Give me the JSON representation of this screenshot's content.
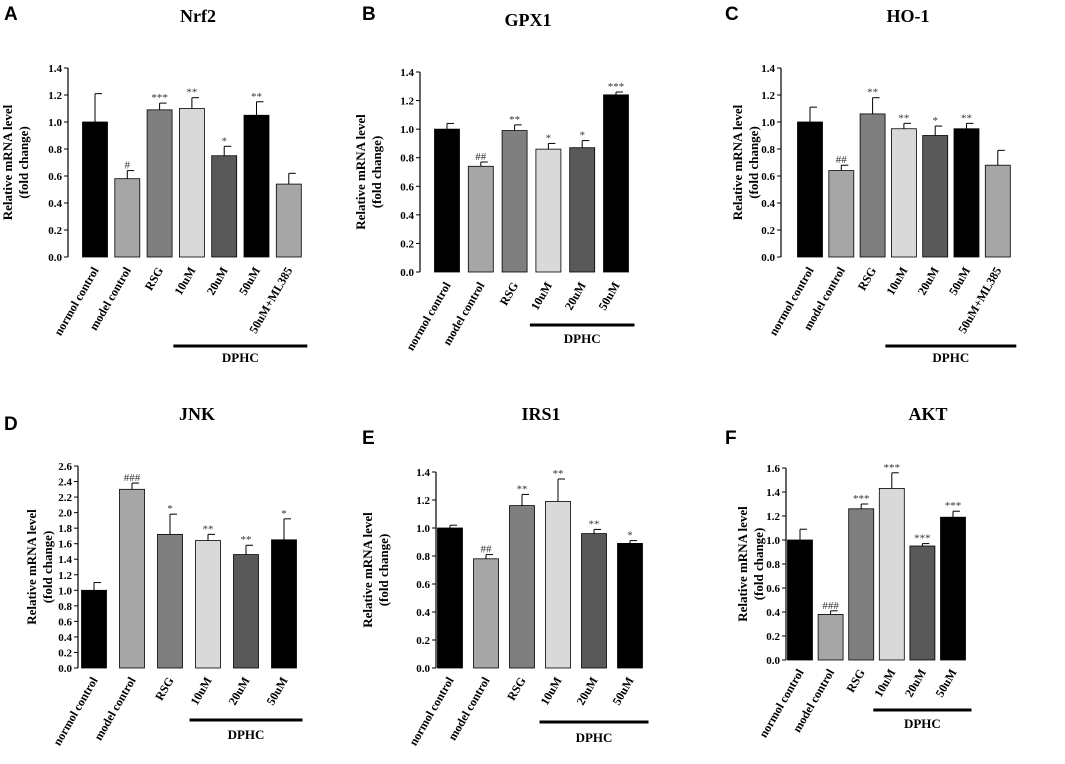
{
  "figure": {
    "colors": [
      "#000000",
      "#a6a6a6",
      "#7f7f7f",
      "#d9d9d9",
      "#595959",
      "#000000",
      "#a6a6a6"
    ],
    "group_label": "DPHC",
    "ylabel_line1": "Relative mRNA level",
    "ylabel_line2": "(fold change)"
  },
  "chart_data": [
    {
      "panel": "A",
      "type": "bar",
      "title": "Nrf2",
      "ylabel": "Relative mRNA level (fold change)",
      "categories": [
        "normol control",
        "model control",
        "RSG",
        "10uM",
        "20uM",
        "50uM",
        "50uM+ML385"
      ],
      "values": [
        1.0,
        0.58,
        1.09,
        1.1,
        0.75,
        1.05,
        0.54
      ],
      "errors": [
        0.21,
        0.06,
        0.05,
        0.08,
        0.07,
        0.1,
        0.08
      ],
      "significance": [
        "",
        "#",
        "***",
        "**",
        "*",
        "**",
        ""
      ],
      "ylim": [
        0,
        1.4
      ],
      "ytick_step": 0.2,
      "ytick_decimals": 1,
      "group": {
        "label": "DPHC",
        "from": 3,
        "to": 6
      }
    },
    {
      "panel": "B",
      "type": "bar",
      "title": "GPX1",
      "ylabel": "Relative mRNA level (fold change)",
      "categories": [
        "normol control",
        "model control",
        "RSG",
        "10uM",
        "20uM",
        "50uM"
      ],
      "values": [
        1.0,
        0.74,
        0.99,
        0.86,
        0.87,
        1.24
      ],
      "errors": [
        0.04,
        0.03,
        0.04,
        0.04,
        0.05,
        0.02
      ],
      "significance": [
        "",
        "##",
        "**",
        "*",
        "*",
        "***"
      ],
      "ylim": [
        0,
        1.4
      ],
      "ytick_step": 0.2,
      "ytick_decimals": 1,
      "group": {
        "label": "DPHC",
        "from": 3,
        "to": 5
      }
    },
    {
      "panel": "C",
      "type": "bar",
      "title": "HO-1",
      "ylabel": "Relative mRNA level (fold change)",
      "categories": [
        "normol control",
        "model control",
        "RSG",
        "10uM",
        "20uM",
        "50uM",
        "50uM+ML385"
      ],
      "values": [
        1.0,
        0.64,
        1.06,
        0.95,
        0.9,
        0.95,
        0.68
      ],
      "errors": [
        0.11,
        0.04,
        0.12,
        0.04,
        0.07,
        0.04,
        0.11
      ],
      "significance": [
        "",
        "##",
        "**",
        "**",
        "*",
        "**",
        ""
      ],
      "ylim": [
        0,
        1.4
      ],
      "ytick_step": 0.2,
      "ytick_decimals": 1,
      "group": {
        "label": "DPHC",
        "from": 3,
        "to": 6
      }
    },
    {
      "panel": "D",
      "type": "bar",
      "title": "JNK",
      "ylabel": "Relative mRNA level (fold change)",
      "categories": [
        "normol control",
        "model control",
        "RSG",
        "10uM",
        "20uM",
        "50uM"
      ],
      "values": [
        1.0,
        2.3,
        1.72,
        1.64,
        1.46,
        1.65
      ],
      "errors": [
        0.1,
        0.08,
        0.26,
        0.08,
        0.12,
        0.27
      ],
      "significance": [
        "",
        "###",
        "*",
        "**",
        "**",
        "*"
      ],
      "ylim": [
        0,
        2.6
      ],
      "ytick_step": 0.2,
      "ytick_decimals": 1,
      "group": {
        "label": "DPHC",
        "from": 3,
        "to": 5
      }
    },
    {
      "panel": "E",
      "type": "bar",
      "title": "IRS1",
      "ylabel": "Relative mRNA level (fold change)",
      "categories": [
        "normol control",
        "model control",
        "RSG",
        "10uM",
        "20uM",
        "50uM"
      ],
      "values": [
        1.0,
        0.78,
        1.16,
        1.19,
        0.96,
        0.89
      ],
      "errors": [
        0.02,
        0.03,
        0.08,
        0.16,
        0.03,
        0.02
      ],
      "significance": [
        "",
        "##",
        "**",
        "**",
        "**",
        "*"
      ],
      "ylim": [
        0,
        1.4
      ],
      "ytick_step": 0.2,
      "ytick_decimals": 1,
      "group": {
        "label": "DPHC",
        "from": 3,
        "to": 5
      }
    },
    {
      "panel": "F",
      "type": "bar",
      "title": "AKT",
      "ylabel": "Relative mRNA level (fold change)",
      "categories": [
        "normol control",
        "model control",
        "RSG",
        "10uM",
        "20uM",
        "50uM"
      ],
      "values": [
        1.0,
        0.38,
        1.26,
        1.43,
        0.95,
        1.19
      ],
      "errors": [
        0.09,
        0.03,
        0.04,
        0.13,
        0.02,
        0.05
      ],
      "significance": [
        "",
        "###",
        "***",
        "***",
        "***",
        "***"
      ],
      "ylim": [
        0,
        1.6
      ],
      "ytick_step": 0.2,
      "ytick_decimals": 1,
      "group": {
        "label": "DPHC",
        "from": 3,
        "to": 5
      }
    }
  ]
}
